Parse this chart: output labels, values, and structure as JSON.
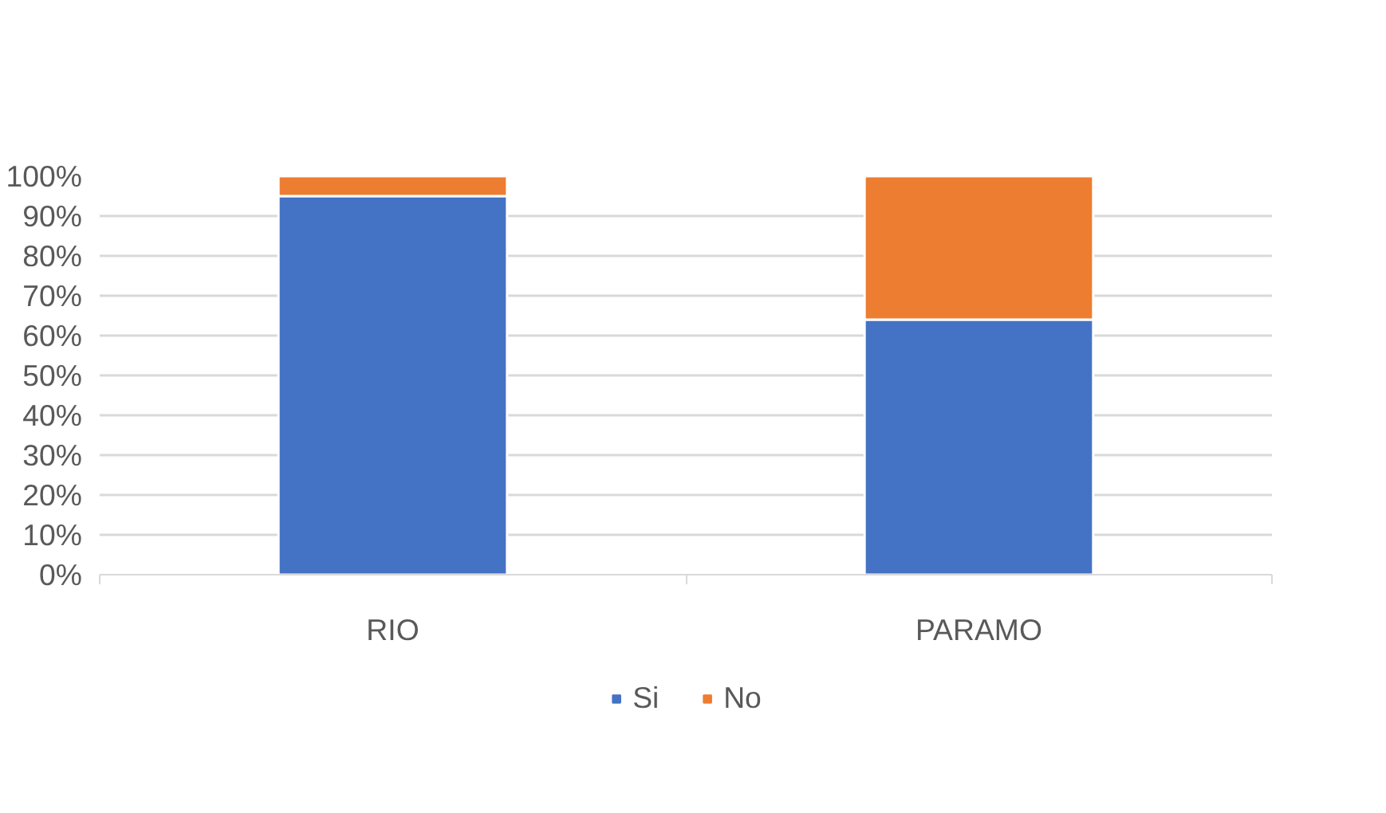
{
  "chart_data": {
    "type": "bar",
    "stacked": true,
    "categories": [
      "RIO",
      "PARAMO"
    ],
    "series": [
      {
        "name": "Si",
        "color": "#4472c4",
        "values": [
          95,
          64
        ]
      },
      {
        "name": "No",
        "color": "#ed7d31",
        "values": [
          5,
          36
        ]
      }
    ],
    "ylim": [
      0,
      100
    ],
    "yticks": [
      {
        "value": 0,
        "label": "0%"
      },
      {
        "value": 10,
        "label": "10%"
      },
      {
        "value": 20,
        "label": "20%"
      },
      {
        "value": 30,
        "label": "30%"
      },
      {
        "value": 40,
        "label": "40%"
      },
      {
        "value": 50,
        "label": "50%"
      },
      {
        "value": 60,
        "label": "60%"
      },
      {
        "value": 70,
        "label": "70%"
      },
      {
        "value": 80,
        "label": "80%"
      },
      {
        "value": 90,
        "label": "90%"
      },
      {
        "value": 100,
        "label": "100%"
      }
    ],
    "grid": "y",
    "legend": "bottom"
  }
}
